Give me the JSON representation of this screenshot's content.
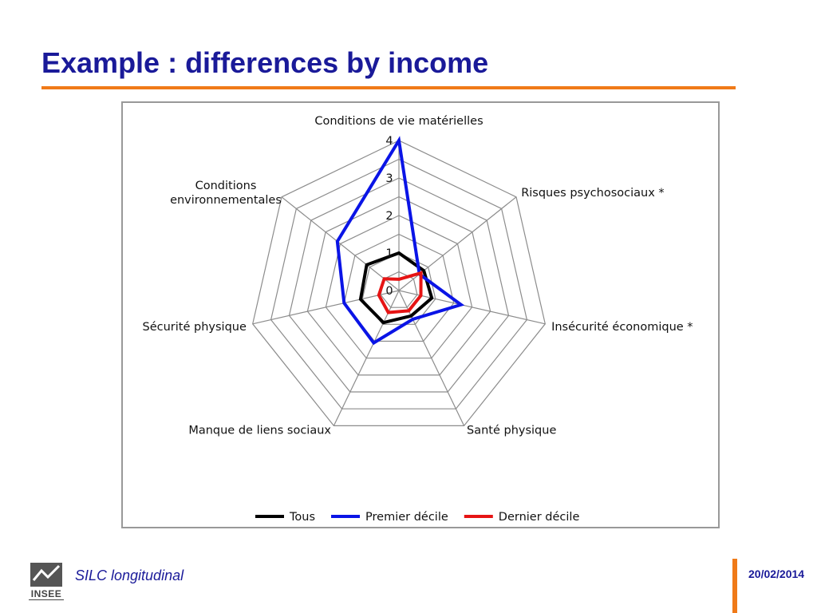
{
  "slide": {
    "title": "Example : differences by income",
    "footer_left": "SILC longitudinal",
    "footer_date": "20/02/2014",
    "logo_text": "INSEE",
    "accent_color": "#f07a18",
    "title_color": "#1a1a99"
  },
  "chart_data": {
    "type": "radar",
    "categories": [
      "Conditions de vie matérielles",
      "Risques psychosociaux *",
      "Insécurité économique *",
      "Santé physique",
      "Manque de liens sociaux",
      "Sécurité physique",
      "Conditions environnementales"
    ],
    "category_lines": [
      [
        "Conditions de vie matérielles"
      ],
      [
        "Risques psychosociaux *"
      ],
      [
        "Insécurité économique *"
      ],
      [
        "Santé physique"
      ],
      [
        "Manque de liens sociaux"
      ],
      [
        "Sécurité physique"
      ],
      [
        "Conditions",
        "environnementales"
      ]
    ],
    "rlim": [
      0,
      4
    ],
    "ticks": [
      "0",
      "1",
      "2",
      "3",
      "4"
    ],
    "grid": true,
    "legend_position": "bottom",
    "series": [
      {
        "name": "Tous",
        "color": "#000000",
        "values": [
          1.0,
          0.85,
          0.9,
          0.75,
          0.95,
          1.05,
          1.1
        ]
      },
      {
        "name": "Premier décile",
        "color": "#0a14e6",
        "values": [
          4.0,
          0.7,
          1.7,
          0.85,
          1.55,
          1.5,
          2.1
        ]
      },
      {
        "name": "Dernier décile",
        "color": "#e61414",
        "values": [
          0.3,
          0.75,
          0.6,
          0.6,
          0.65,
          0.55,
          0.5
        ]
      }
    ]
  }
}
